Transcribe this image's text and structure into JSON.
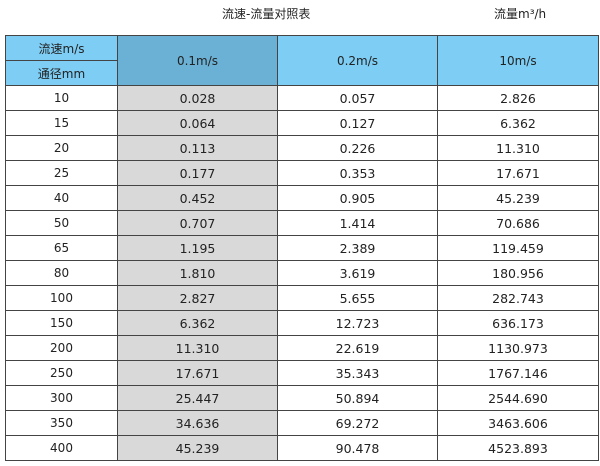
{
  "title": "流速-流量对照表",
  "unit_label": "流量m³/h",
  "header": {
    "velocity_label": "流速m/s",
    "diameter_label": "通径mm",
    "columns": [
      "0.1m/s",
      "0.2m/s",
      "10m/s"
    ]
  },
  "colors": {
    "header": "#7dcdf4",
    "header_highlight": "#6bb1d5",
    "highlight_cells": "#d9d9d9"
  },
  "rows": [
    [
      "10",
      "0.028",
      "0.057",
      "2.826"
    ],
    [
      "15",
      "0.064",
      "0.127",
      "6.362"
    ],
    [
      "20",
      "0.113",
      "0.226",
      "11.310"
    ],
    [
      "25",
      "0.177",
      "0.353",
      "17.671"
    ],
    [
      "40",
      "0.452",
      "0.905",
      "45.239"
    ],
    [
      "50",
      "0.707",
      "1.414",
      "70.686"
    ],
    [
      "65",
      "1.195",
      "2.389",
      "119.459"
    ],
    [
      "80",
      "1.810",
      "3.619",
      "180.956"
    ],
    [
      "100",
      "2.827",
      "5.655",
      "282.743"
    ],
    [
      "150",
      "6.362",
      "12.723",
      "636.173"
    ],
    [
      "200",
      "11.310",
      "22.619",
      "1130.973"
    ],
    [
      "250",
      "17.671",
      "35.343",
      "1767.146"
    ],
    [
      "300",
      "25.447",
      "50.894",
      "2544.690"
    ],
    [
      "350",
      "34.636",
      "69.272",
      "3463.606"
    ],
    [
      "400",
      "45.239",
      "90.478",
      "4523.893"
    ]
  ]
}
